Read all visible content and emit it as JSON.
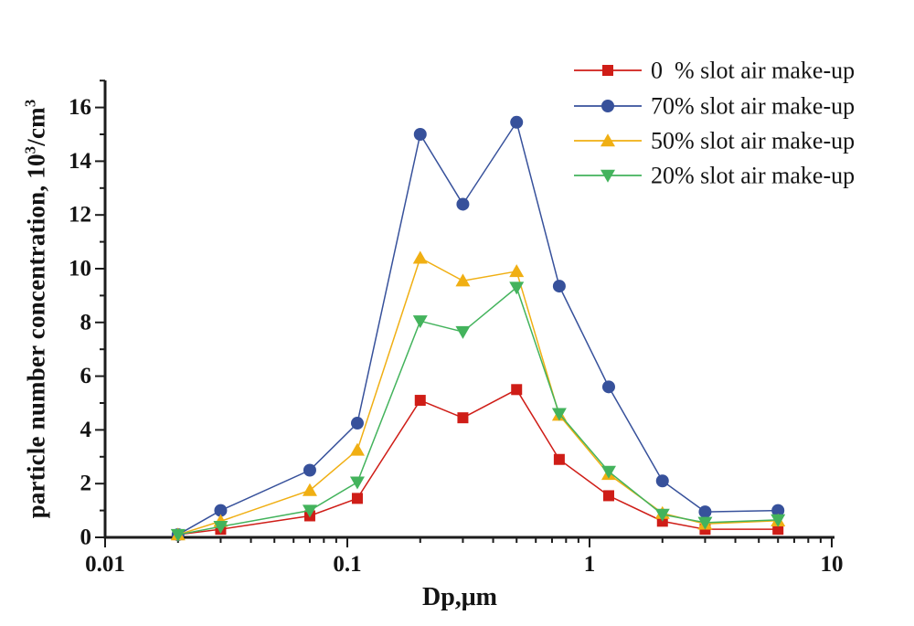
{
  "chart_data": {
    "type": "line",
    "x_scale": "log",
    "x": [
      0.02,
      0.03,
      0.07,
      0.11,
      0.2,
      0.3,
      0.5,
      0.75,
      1.2,
      2,
      3,
      6
    ],
    "series": [
      {
        "name": "0  % slot air make-up",
        "marker": "square",
        "color": "#cf1d17",
        "values": [
          0.1,
          0.3,
          0.8,
          1.45,
          5.1,
          4.45,
          5.5,
          2.9,
          1.55,
          0.6,
          0.3,
          0.3
        ]
      },
      {
        "name": "70% slot air make-up",
        "marker": "circle",
        "color": "#37519b",
        "values": [
          0.1,
          1.0,
          2.5,
          4.25,
          15.0,
          12.4,
          15.45,
          9.35,
          5.6,
          2.1,
          0.95,
          1.0
        ]
      },
      {
        "name": "50% slot air make-up",
        "marker": "triangle-up",
        "color": "#f0af13",
        "values": [
          0.1,
          0.6,
          1.75,
          3.25,
          10.4,
          9.55,
          9.9,
          4.55,
          2.35,
          0.9,
          0.5,
          0.62
        ]
      },
      {
        "name": "20% slot air make-up",
        "marker": "triangle-down",
        "color": "#43b35c",
        "values": [
          0.1,
          0.4,
          1.0,
          2.05,
          8.05,
          7.65,
          9.3,
          4.6,
          2.45,
          0.85,
          0.55,
          0.65
        ]
      }
    ],
    "title": "",
    "xlabel": "Dp,μm",
    "ylabel": "particle number concentration, 10³/cm³",
    "ylabel_parts": [
      {
        "text": "particle number concentration, 10",
        "sup": false
      },
      {
        "text": "3",
        "sup": true
      },
      {
        "text": "/cm",
        "sup": false
      },
      {
        "text": "3",
        "sup": true
      }
    ],
    "x_ticks": {
      "values": [
        0.01,
        0.1,
        1,
        10
      ],
      "labels": [
        "0.01",
        "0.1",
        "1",
        "10"
      ]
    },
    "y_ticks": [
      0,
      2,
      4,
      6,
      8,
      10,
      12,
      14,
      16
    ],
    "xlim": [
      0.01,
      10.3
    ],
    "ylim": [
      0,
      17
    ],
    "grid": false,
    "legend_position": "top-right",
    "axis_color": "#1c1c1c",
    "text_color": "#141414"
  }
}
